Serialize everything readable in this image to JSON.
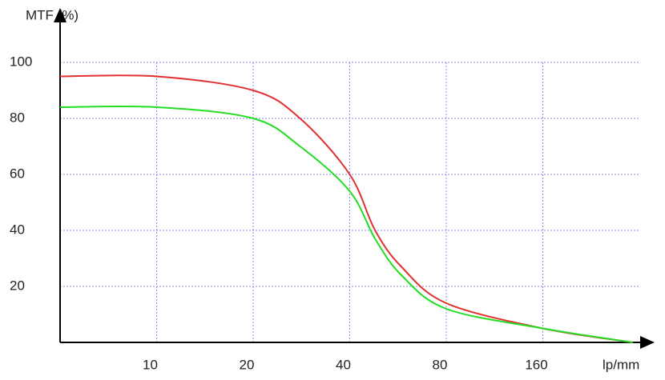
{
  "chart_data": {
    "type": "line",
    "y_label": "MTF (%)",
    "x_label": "lp/mm",
    "x": [
      5,
      10,
      20,
      28,
      40,
      48,
      58,
      80,
      160,
      305
    ],
    "series": [
      {
        "color": "#e03030",
        "values": [
          95,
          95,
          90,
          80,
          60,
          40,
          27,
          14,
          5,
          0
        ]
      },
      {
        "color": "#22dd22",
        "values": [
          84,
          84,
          80,
          70,
          54,
          37,
          24,
          12,
          5,
          0
        ]
      }
    ],
    "xscale": "log",
    "xlim": [
      5,
      320
    ],
    "xticks": [
      10,
      20,
      40,
      80,
      160
    ],
    "ylim": [
      0,
      100
    ],
    "yticks": [
      20,
      40,
      60,
      80,
      100
    ],
    "grid": true
  }
}
